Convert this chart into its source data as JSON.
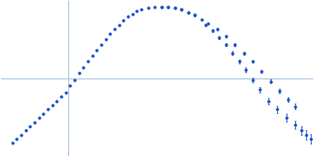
{
  "title": "",
  "background_color": "#ffffff",
  "axis_color": "#a0c0e0",
  "point_color": "#2255cc",
  "point_size": 2.0,
  "error_bar_color": "#2255cc",
  "figsize": [
    4.0,
    2.0
  ],
  "dpi": 100,
  "xlim": [
    -0.3,
    1.1
  ],
  "ylim": [
    -0.55,
    0.55
  ],
  "hline_y": 0.0,
  "vline_x": 0.0,
  "x": [
    -0.25,
    -0.23,
    -0.21,
    -0.19,
    -0.17,
    -0.15,
    -0.13,
    -0.11,
    -0.09,
    -0.07,
    -0.05,
    -0.03,
    -0.01,
    0.01,
    0.03,
    0.05,
    0.07,
    0.09,
    0.11,
    0.13,
    0.15,
    0.17,
    0.19,
    0.21,
    0.23,
    0.25,
    0.27,
    0.29,
    0.31,
    0.33,
    0.36,
    0.39,
    0.42,
    0.45,
    0.48,
    0.51,
    0.54,
    0.57,
    0.6,
    0.63,
    0.67,
    0.71,
    0.75,
    0.79,
    0.83,
    0.87,
    0.91,
    0.95,
    0.99,
    1.02,
    0.42,
    0.45,
    0.48,
    0.51,
    0.54,
    0.57,
    0.62,
    0.65,
    0.68,
    0.71,
    0.74,
    0.77,
    0.8,
    0.83,
    0.86,
    0.9,
    0.94,
    0.98,
    1.02,
    1.05,
    1.07,
    1.09
  ],
  "y": [
    -0.46,
    -0.43,
    -0.4,
    -0.37,
    -0.34,
    -0.31,
    -0.28,
    -0.25,
    -0.22,
    -0.19,
    -0.16,
    -0.13,
    -0.1,
    -0.05,
    -0.01,
    0.04,
    0.08,
    0.12,
    0.16,
    0.2,
    0.24,
    0.28,
    0.32,
    0.35,
    0.38,
    0.41,
    0.44,
    0.46,
    0.48,
    0.49,
    0.5,
    0.51,
    0.51,
    0.51,
    0.5,
    0.49,
    0.47,
    0.45,
    0.42,
    0.39,
    0.35,
    0.3,
    0.24,
    0.18,
    0.12,
    0.05,
    -0.02,
    -0.09,
    -0.15,
    -0.2,
    0.51,
    0.51,
    0.5,
    0.49,
    0.47,
    0.45,
    0.38,
    0.34,
    0.29,
    0.24,
    0.18,
    0.12,
    0.06,
    -0.01,
    -0.08,
    -0.16,
    -0.22,
    -0.28,
    -0.33,
    -0.37,
    -0.4,
    -0.43
  ],
  "yerr_small": [
    0.0,
    0.0,
    0.0,
    0.0,
    0.0,
    0.0,
    0.0,
    0.0,
    0.0,
    0.0,
    0.0,
    0.0,
    0.0,
    0.0,
    0.0,
    0.0,
    0.0,
    0.0,
    0.0,
    0.0,
    0.0,
    0.0,
    0.0,
    0.0,
    0.0,
    0.0,
    0.0,
    0.0,
    0.0,
    0.0,
    0.0,
    0.0,
    0.005,
    0.005,
    0.005,
    0.005,
    0.005,
    0.006,
    0.006,
    0.007,
    0.007,
    0.008,
    0.009,
    0.01,
    0.011,
    0.012,
    0.014,
    0.016,
    0.018,
    0.02,
    0.005,
    0.005,
    0.005,
    0.006,
    0.006,
    0.007,
    0.008,
    0.009,
    0.01,
    0.011,
    0.013,
    0.014,
    0.016,
    0.018,
    0.02,
    0.022,
    0.025,
    0.027,
    0.029,
    0.031,
    0.033,
    0.035
  ]
}
